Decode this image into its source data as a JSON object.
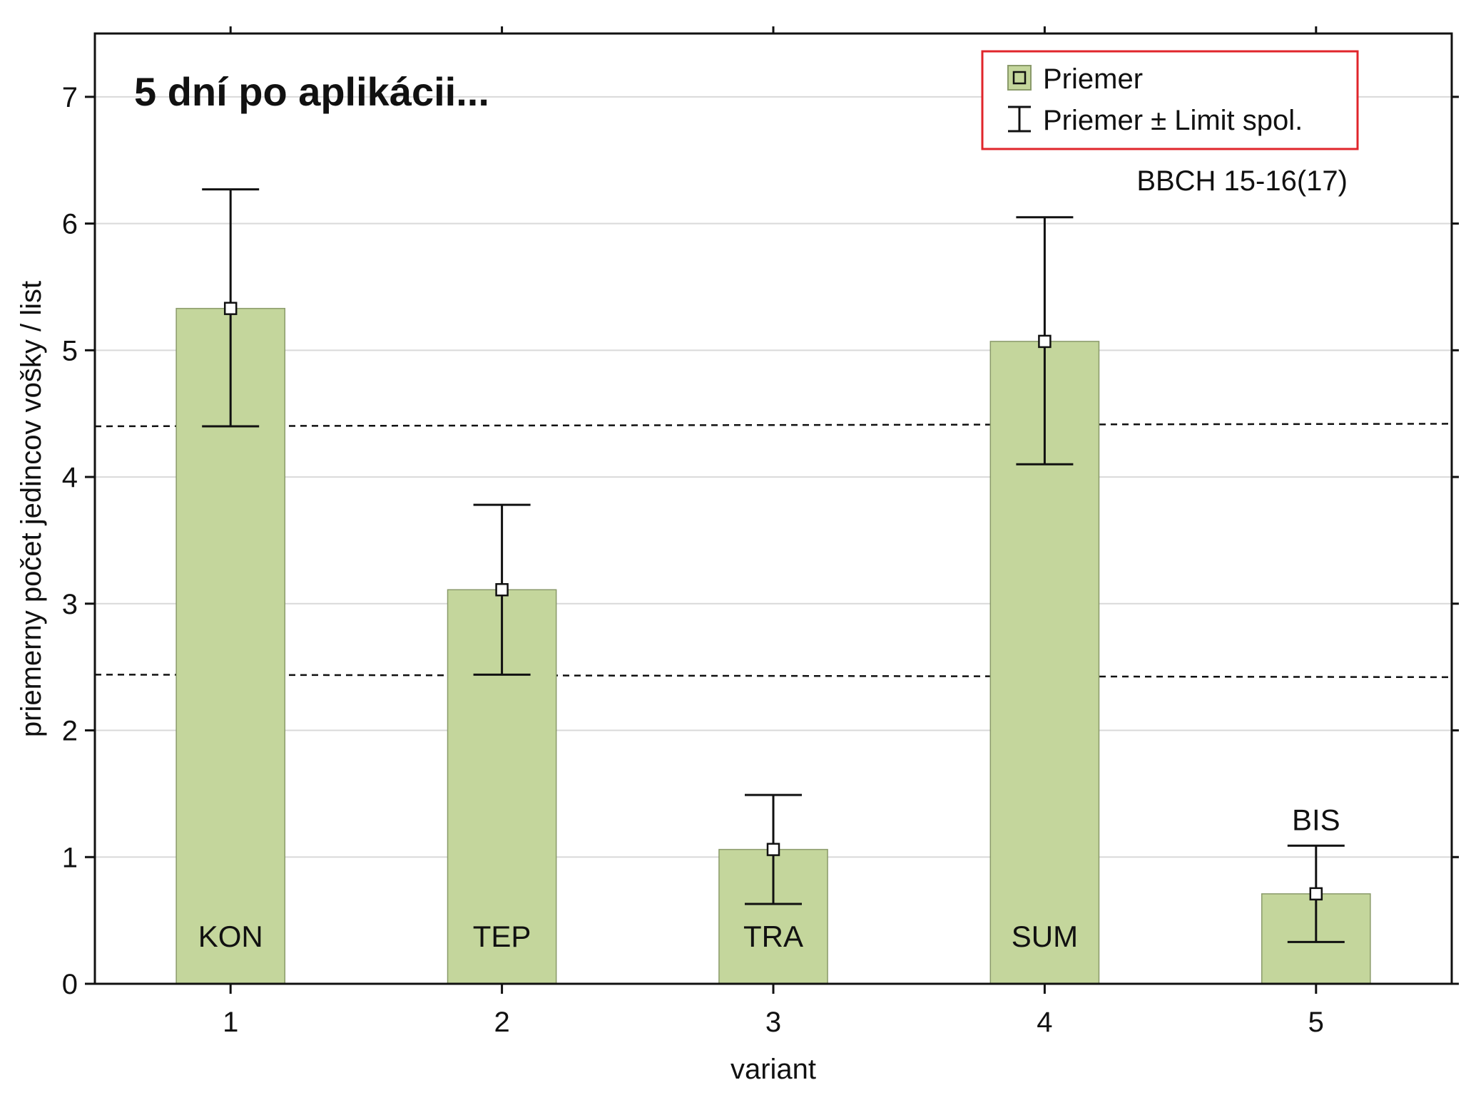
{
  "chart_data": {
    "type": "bar",
    "title": "5 dní po aplikácii...",
    "annotation": "BBCH 15-16(17)",
    "xlabel": "variant",
    "ylabel": "priemerny počet jedincov vošky / list",
    "categories": [
      "1",
      "2",
      "3",
      "4",
      "5"
    ],
    "bar_labels": [
      "KON",
      "TEP",
      "TRA",
      "SUM",
      "BIS"
    ],
    "values": [
      5.33,
      3.11,
      1.06,
      5.07,
      0.71
    ],
    "error_low": [
      4.4,
      2.44,
      0.63,
      4.1,
      0.33
    ],
    "error_high": [
      6.27,
      3.78,
      1.49,
      6.05,
      1.09
    ],
    "reference_lines": [
      {
        "y_start": 4.4,
        "y_end": 4.42
      },
      {
        "y_start": 2.44,
        "y_end": 2.42
      }
    ],
    "ylim": [
      0,
      7.5
    ],
    "yticks": [
      "0",
      "1",
      "2",
      "3",
      "4",
      "5",
      "6",
      "7"
    ],
    "grid": true,
    "legend_position": "top-right",
    "legend": [
      {
        "label": "Priemer",
        "marker": "square-marker"
      },
      {
        "label": "Priemer ± Limit spol.",
        "marker": "error-bar-marker"
      }
    ],
    "colors": {
      "bar_fill": "#c4d69c",
      "bar_stroke": "#8a9a6a",
      "legend_border": "#e0252b",
      "grid": "#d9d9d9",
      "ink": "#111111"
    }
  }
}
